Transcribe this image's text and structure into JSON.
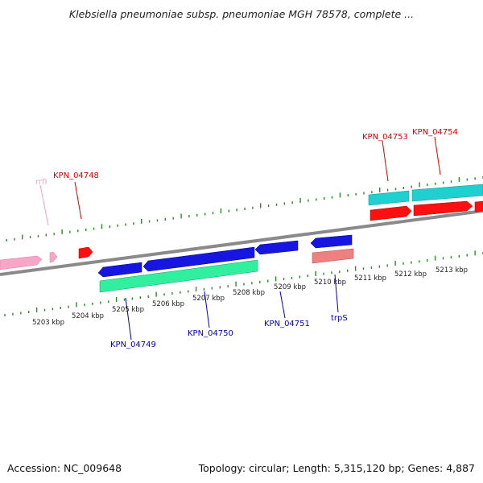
{
  "title": "Klebsiella pneumoniae subsp. pneumoniae MGH 78578, complete ...",
  "footer": {
    "accession": "Accession: NC_009648",
    "summary": "Topology: circular; Length: 5,315,120 bp; Genes: 4,887"
  },
  "ticks": [
    "5203 kbp",
    "5204 kbp",
    "5205 kbp",
    "5206 kbp",
    "5207 kbp",
    "5208 kbp",
    "5209 kbp",
    "5210 kbp",
    "5211 kbp",
    "5212 kbp",
    "5213 kbp"
  ],
  "gene_labels": [
    {
      "id": "rrfI",
      "text": "rrfI",
      "color": "#f4a0c0"
    },
    {
      "id": "KPN_04748",
      "text": "KPN_04748",
      "color": "#e00000"
    },
    {
      "id": "KPN_04753",
      "text": "KPN_04753",
      "color": "#e00000"
    },
    {
      "id": "KPN_04754",
      "text": "KPN_04754",
      "color": "#e00000"
    },
    {
      "id": "KPN_04749",
      "text": "KPN_04749",
      "color": "#0000c0"
    },
    {
      "id": "KPN_04750",
      "text": "KPN_04750",
      "color": "#0000c0"
    },
    {
      "id": "KPN_04751",
      "text": "KPN_04751",
      "color": "#0000c0"
    },
    {
      "id": "trpS",
      "text": "trpS",
      "color": "#0000c0"
    }
  ],
  "colors": {
    "backbone": "#8a8a8a",
    "tick": "#2a8a2a",
    "rrna": "#f7a6c8",
    "red_gene": "#ff1010",
    "blue_gene": "#1616e0",
    "teal_gene": "#20d0d0",
    "green_gene": "#30f0a0",
    "salmon_gene": "#f08080"
  }
}
